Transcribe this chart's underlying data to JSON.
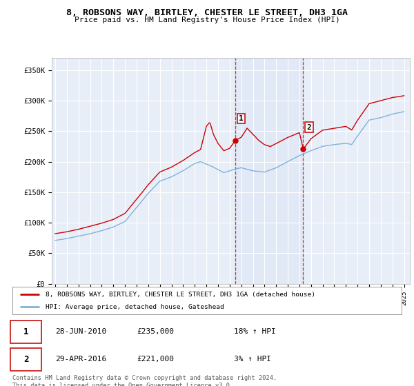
{
  "title": "8, ROBSONS WAY, BIRTLEY, CHESTER LE STREET, DH3 1GA",
  "subtitle": "Price paid vs. HM Land Registry's House Price Index (HPI)",
  "ylabel_ticks": [
    "£0",
    "£50K",
    "£100K",
    "£150K",
    "£200K",
    "£250K",
    "£300K",
    "£350K"
  ],
  "ytick_values": [
    0,
    50000,
    100000,
    150000,
    200000,
    250000,
    300000,
    350000
  ],
  "ylim": [
    0,
    370000
  ],
  "xlim_start": 1994.7,
  "xlim_end": 2025.5,
  "background_color": "#ffffff",
  "plot_bg_color": "#e8eef8",
  "grid_color": "#ffffff",
  "hpi_color": "#7fb3d9",
  "price_color": "#cc0000",
  "sale1_date": 2010.49,
  "sale1_price": 235000,
  "sale1_label": "1",
  "sale2_date": 2016.33,
  "sale2_price": 221000,
  "sale2_label": "2",
  "legend_line1": "8, ROBSONS WAY, BIRTLEY, CHESTER LE STREET, DH3 1GA (detached house)",
  "legend_line2": "HPI: Average price, detached house, Gateshead",
  "table_row1": [
    "1",
    "28-JUN-2010",
    "£235,000",
    "18% ↑ HPI"
  ],
  "table_row2": [
    "2",
    "29-APR-2016",
    "£221,000",
    "3% ↑ HPI"
  ],
  "footer": "Contains HM Land Registry data © Crown copyright and database right 2024.\nThis data is licensed under the Open Government Licence v3.0.",
  "xticks": [
    1995,
    1996,
    1997,
    1998,
    1999,
    2000,
    2001,
    2002,
    2003,
    2004,
    2005,
    2006,
    2007,
    2008,
    2009,
    2010,
    2011,
    2012,
    2013,
    2014,
    2015,
    2016,
    2017,
    2018,
    2019,
    2020,
    2021,
    2022,
    2023,
    2024,
    2025
  ]
}
